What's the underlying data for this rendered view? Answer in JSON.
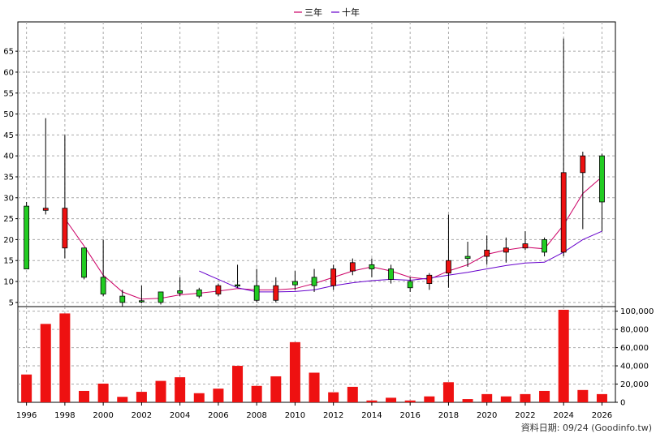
{
  "chart_data": [
    {
      "type": "candlestick",
      "title": "",
      "legend": {
        "position": "top-center",
        "items": [
          {
            "name": "三年",
            "color": "#cc0066"
          },
          {
            "name": "十年",
            "color": "#6600cc"
          }
        ]
      },
      "ylim": [
        4,
        72
      ],
      "yticks": [
        5,
        10,
        15,
        20,
        25,
        30,
        35,
        40,
        45,
        50,
        55,
        60,
        65
      ],
      "grid": true,
      "up_color": "#22cc22",
      "down_color": "#ee1111",
      "candles": [
        {
          "year": 1996,
          "open": 13,
          "high": 29,
          "low": 13,
          "close": 28
        },
        {
          "year": 1997,
          "open": 27.5,
          "high": 49,
          "low": 26,
          "close": 27
        },
        {
          "year": 1998,
          "open": 27.5,
          "high": 45,
          "low": 15.5,
          "close": 18
        },
        {
          "year": 1999,
          "open": 11,
          "high": 18,
          "low": 10.5,
          "close": 18
        },
        {
          "year": 2000,
          "open": 7,
          "high": 20,
          "low": 6.5,
          "close": 11
        },
        {
          "year": 2001,
          "open": 5,
          "high": 8,
          "low": 4,
          "close": 6.5
        },
        {
          "year": 2002,
          "open": 5.2,
          "high": 9,
          "low": 4.8,
          "close": 5.4
        },
        {
          "year": 2003,
          "open": 5,
          "high": 7.5,
          "low": 4.5,
          "close": 7.5
        },
        {
          "year": 2004,
          "open": 7.2,
          "high": 11,
          "low": 6.5,
          "close": 7.8
        },
        {
          "year": 2005,
          "open": 6.5,
          "high": 8.5,
          "low": 6,
          "close": 8
        },
        {
          "year": 2006,
          "open": 9,
          "high": 9.5,
          "low": 6.5,
          "close": 7
        },
        {
          "year": 2007,
          "open": 9,
          "high": 14,
          "low": 8.5,
          "close": 9.2
        },
        {
          "year": 2008,
          "open": 5.5,
          "high": 13,
          "low": 5,
          "close": 9
        },
        {
          "year": 2009,
          "open": 9,
          "high": 11,
          "low": 5,
          "close": 5.5
        },
        {
          "year": 2010,
          "open": 9.2,
          "high": 12.5,
          "low": 8,
          "close": 10
        },
        {
          "year": 2011,
          "open": 9,
          "high": 13,
          "low": 7.5,
          "close": 11
        },
        {
          "year": 2012,
          "open": 13,
          "high": 14,
          "low": 8,
          "close": 9
        },
        {
          "year": 2013,
          "open": 14.5,
          "high": 15.5,
          "low": 11.5,
          "close": 12.5
        },
        {
          "year": 2014,
          "open": 13,
          "high": 15.5,
          "low": 11,
          "close": 14
        },
        {
          "year": 2015,
          "open": 10.5,
          "high": 14,
          "low": 9.5,
          "close": 13
        },
        {
          "year": 2016,
          "open": 8.5,
          "high": 11,
          "low": 7.5,
          "close": 10
        },
        {
          "year": 2017,
          "open": 11.5,
          "high": 12,
          "low": 8,
          "close": 9.5
        },
        {
          "year": 2018,
          "open": 15,
          "high": 26,
          "low": 8.5,
          "close": 12
        },
        {
          "year": 2019,
          "open": 15.5,
          "high": 19.5,
          "low": 13.5,
          "close": 16
        },
        {
          "year": 2020,
          "open": 17.5,
          "high": 21,
          "low": 14,
          "close": 16
        },
        {
          "year": 2021,
          "open": 18,
          "high": 20.5,
          "low": 14.5,
          "close": 17
        },
        {
          "year": 2022,
          "open": 19,
          "high": 22,
          "low": 17.5,
          "close": 18
        },
        {
          "year": 2023,
          "open": 17,
          "high": 20.5,
          "low": 16,
          "close": 20
        },
        {
          "year": 2024,
          "open": 36,
          "high": 68,
          "low": 16,
          "close": 17
        },
        {
          "year": 2025,
          "open": 40,
          "high": 41,
          "low": 22.5,
          "close": 36
        },
        {
          "year": 2026,
          "open": 29,
          "high": 40.5,
          "low": 22,
          "close": 40
        }
      ],
      "series": [
        {
          "name": "三年",
          "color": "#cc0066",
          "points": [
            [
              1998,
              25
            ],
            [
              1999,
              18.5
            ],
            [
              2000,
              11.5
            ],
            [
              2001,
              7.5
            ],
            [
              2002,
              5.8
            ],
            [
              2003,
              6
            ],
            [
              2004,
              6.8
            ],
            [
              2005,
              7.2
            ],
            [
              2006,
              7.7
            ],
            [
              2007,
              8.3
            ],
            [
              2008,
              8
            ],
            [
              2009,
              8
            ],
            [
              2010,
              8.3
            ],
            [
              2011,
              9.5
            ],
            [
              2012,
              11
            ],
            [
              2013,
              12.5
            ],
            [
              2014,
              13.5
            ],
            [
              2015,
              12.5
            ],
            [
              2016,
              11
            ],
            [
              2017,
              10.5
            ],
            [
              2018,
              12.5
            ],
            [
              2019,
              14
            ],
            [
              2020,
              16.5
            ],
            [
              2021,
              17.5
            ],
            [
              2022,
              18.2
            ],
            [
              2023,
              17.8
            ],
            [
              2024,
              23.5
            ],
            [
              2025,
              31
            ],
            [
              2026,
              35
            ]
          ]
        },
        {
          "name": "十年",
          "color": "#6600cc",
          "points": [
            [
              2005,
              12.5
            ],
            [
              2006,
              10.5
            ],
            [
              2007,
              8.5
            ],
            [
              2008,
              7.5
            ],
            [
              2009,
              7.5
            ],
            [
              2010,
              7.6
            ],
            [
              2011,
              8
            ],
            [
              2012,
              9
            ],
            [
              2013,
              9.7
            ],
            [
              2014,
              10.2
            ],
            [
              2015,
              10.5
            ],
            [
              2016,
              10.3
            ],
            [
              2017,
              10.8
            ],
            [
              2018,
              11.5
            ],
            [
              2019,
              12.2
            ],
            [
              2020,
              13
            ],
            [
              2021,
              13.8
            ],
            [
              2022,
              14.4
            ],
            [
              2023,
              14.6
            ],
            [
              2024,
              17
            ],
            [
              2025,
              20
            ],
            [
              2026,
              22
            ]
          ]
        }
      ]
    },
    {
      "type": "bar",
      "title": "",
      "ylim": [
        0,
        105000
      ],
      "yticks": [
        0,
        20000,
        40000,
        60000,
        80000,
        100000
      ],
      "ytick_labels": [
        "0",
        "20,000",
        "40,000",
        "60,000",
        "80,000",
        "100,000"
      ],
      "bar_color": "#ee1111",
      "categories": [
        1996,
        1997,
        1998,
        1999,
        2000,
        2001,
        2002,
        2003,
        2004,
        2005,
        2006,
        2007,
        2008,
        2009,
        2010,
        2011,
        2012,
        2013,
        2014,
        2015,
        2016,
        2017,
        2018,
        2019,
        2020,
        2021,
        2022,
        2023,
        2024,
        2025,
        2026
      ],
      "values": [
        30500,
        86000,
        97500,
        12500,
        20500,
        6000,
        11500,
        23500,
        27500,
        10000,
        15000,
        40000,
        18000,
        28500,
        66000,
        32500,
        11000,
        17000,
        2000,
        5000,
        2000,
        6500,
        22000,
        3500,
        9000,
        6500,
        9000,
        12500,
        101500,
        13500,
        9000
      ]
    }
  ],
  "xticks": [
    1996,
    1998,
    2000,
    2002,
    2004,
    2006,
    2008,
    2010,
    2012,
    2014,
    2016,
    2018,
    2020,
    2022,
    2024,
    2026
  ],
  "credit": "資料日期: 09/24  (Goodinfo.tw)"
}
